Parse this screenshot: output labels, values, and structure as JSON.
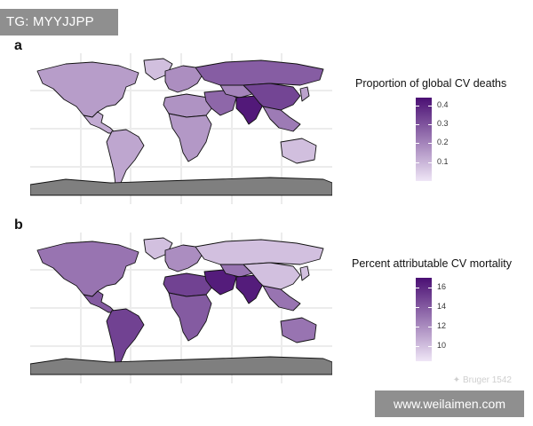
{
  "overlay": {
    "tag_text": "TG: MYYJJPP",
    "website": "www.weilaimen.com",
    "watermark": "✦ Bruger 1542"
  },
  "panel_a": {
    "letter": "a",
    "legend_title": "Proportion of global CV deaths",
    "legend_ticks": [
      "0.4",
      "0.3",
      "0.2",
      "0.1"
    ],
    "legend_tick_values": [
      0.4,
      0.3,
      0.2,
      0.1
    ],
    "legend_range": [
      0.0,
      0.44
    ],
    "color_low": "#efe6f6",
    "color_high": "#4a0f73",
    "region_levels": {
      "north_america": 0.15,
      "greenland": 0.08,
      "central_america": 0.12,
      "south_america": 0.13,
      "europe": 0.18,
      "russia": 0.28,
      "middle_east": 0.26,
      "north_africa": 0.17,
      "subsaharan_africa": 0.16,
      "central_asia": 0.2,
      "south_asia": 0.42,
      "china": 0.33,
      "southeast_asia": 0.22,
      "japan": 0.14,
      "australia": 0.08,
      "antarctica": null
    }
  },
  "panel_b": {
    "letter": "b",
    "legend_title": "Percent attributable CV mortality",
    "legend_ticks": [
      "16",
      "14",
      "12",
      "10"
    ],
    "legend_tick_values": [
      16,
      14,
      12,
      10
    ],
    "legend_range": [
      8.5,
      17
    ],
    "color_low": "#efe6f6",
    "color_high": "#4a0f73",
    "region_levels": {
      "north_america": 13,
      "greenland": 10,
      "central_america": 14,
      "south_america": 15,
      "europe": 12,
      "russia": 10,
      "middle_east": 16.5,
      "north_africa": 15,
      "subsaharan_africa": 14,
      "central_asia": 13,
      "south_asia": 16.5,
      "china": 10,
      "southeast_asia": 13,
      "japan": 10,
      "australia": 13,
      "antarctica": null
    }
  },
  "colors": {
    "antarctica": "#7f7f7f",
    "border": "#111111",
    "grid": "#ececec"
  }
}
